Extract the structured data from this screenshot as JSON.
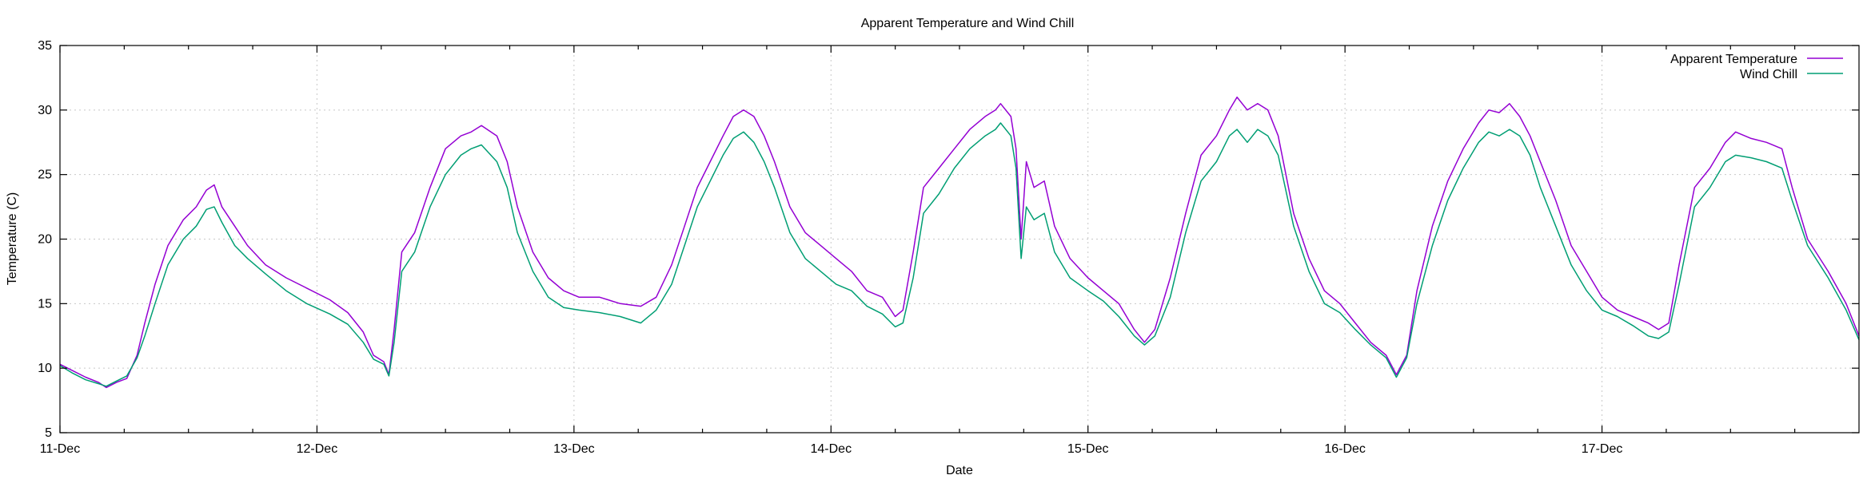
{
  "chart_data": {
    "type": "line",
    "title": "Apparent Temperature and Wind Chill",
    "xlabel": "Date",
    "ylabel": "Temperature (C)",
    "xlim": [
      0,
      7
    ],
    "ylim": [
      5,
      35
    ],
    "yticks": [
      5,
      10,
      15,
      20,
      25,
      30,
      35
    ],
    "xticks": [
      {
        "x": 0,
        "label": "11-Dec"
      },
      {
        "x": 1,
        "label": "12-Dec"
      },
      {
        "x": 2,
        "label": "13-Dec"
      },
      {
        "x": 3,
        "label": "14-Dec"
      },
      {
        "x": 4,
        "label": "15-Dec"
      },
      {
        "x": 5,
        "label": "16-Dec"
      },
      {
        "x": 6,
        "label": "17-Dec"
      }
    ],
    "grid": true,
    "legend_position": "top-right",
    "series": [
      {
        "name": "Apparent Temperature",
        "color": "#9400d3",
        "points": [
          [
            0.0,
            10.3
          ],
          [
            0.05,
            9.8
          ],
          [
            0.1,
            9.3
          ],
          [
            0.15,
            8.9
          ],
          [
            0.18,
            8.5
          ],
          [
            0.22,
            8.9
          ],
          [
            0.26,
            9.2
          ],
          [
            0.3,
            11.0
          ],
          [
            0.33,
            13.5
          ],
          [
            0.37,
            16.5
          ],
          [
            0.42,
            19.5
          ],
          [
            0.48,
            21.5
          ],
          [
            0.53,
            22.5
          ],
          [
            0.57,
            23.8
          ],
          [
            0.6,
            24.2
          ],
          [
            0.63,
            22.5
          ],
          [
            0.68,
            21.0
          ],
          [
            0.73,
            19.5
          ],
          [
            0.8,
            18.0
          ],
          [
            0.88,
            17.0
          ],
          [
            0.96,
            16.2
          ],
          [
            1.05,
            15.3
          ],
          [
            1.12,
            14.3
          ],
          [
            1.18,
            12.8
          ],
          [
            1.22,
            11.0
          ],
          [
            1.26,
            10.5
          ],
          [
            1.28,
            9.5
          ],
          [
            1.3,
            13.0
          ],
          [
            1.33,
            19.0
          ],
          [
            1.38,
            20.5
          ],
          [
            1.44,
            24.0
          ],
          [
            1.5,
            27.0
          ],
          [
            1.56,
            28.0
          ],
          [
            1.6,
            28.3
          ],
          [
            1.64,
            28.8
          ],
          [
            1.7,
            28.0
          ],
          [
            1.74,
            26.0
          ],
          [
            1.78,
            22.5
          ],
          [
            1.84,
            19.0
          ],
          [
            1.9,
            17.0
          ],
          [
            1.96,
            16.0
          ],
          [
            2.02,
            15.5
          ],
          [
            2.1,
            15.5
          ],
          [
            2.18,
            15.0
          ],
          [
            2.26,
            14.8
          ],
          [
            2.32,
            15.5
          ],
          [
            2.38,
            18.0
          ],
          [
            2.43,
            21.0
          ],
          [
            2.48,
            24.0
          ],
          [
            2.53,
            26.0
          ],
          [
            2.58,
            28.0
          ],
          [
            2.62,
            29.5
          ],
          [
            2.66,
            30.0
          ],
          [
            2.7,
            29.5
          ],
          [
            2.74,
            28.0
          ],
          [
            2.78,
            26.0
          ],
          [
            2.84,
            22.5
          ],
          [
            2.9,
            20.5
          ],
          [
            2.96,
            19.5
          ],
          [
            3.02,
            18.5
          ],
          [
            3.08,
            17.5
          ],
          [
            3.14,
            16.0
          ],
          [
            3.2,
            15.5
          ],
          [
            3.25,
            14.0
          ],
          [
            3.28,
            14.5
          ],
          [
            3.32,
            19.0
          ],
          [
            3.36,
            24.0
          ],
          [
            3.42,
            25.5
          ],
          [
            3.48,
            27.0
          ],
          [
            3.54,
            28.5
          ],
          [
            3.6,
            29.5
          ],
          [
            3.64,
            30.0
          ],
          [
            3.66,
            30.5
          ],
          [
            3.7,
            29.5
          ],
          [
            3.72,
            27.0
          ],
          [
            3.74,
            20.0
          ],
          [
            3.76,
            26.0
          ],
          [
            3.79,
            24.0
          ],
          [
            3.83,
            24.5
          ],
          [
            3.87,
            21.0
          ],
          [
            3.93,
            18.5
          ],
          [
            4.0,
            17.0
          ],
          [
            4.06,
            16.0
          ],
          [
            4.12,
            15.0
          ],
          [
            4.18,
            13.0
          ],
          [
            4.22,
            12.0
          ],
          [
            4.26,
            13.0
          ],
          [
            4.32,
            17.0
          ],
          [
            4.38,
            22.0
          ],
          [
            4.44,
            26.5
          ],
          [
            4.5,
            28.0
          ],
          [
            4.55,
            30.0
          ],
          [
            4.58,
            31.0
          ],
          [
            4.62,
            30.0
          ],
          [
            4.66,
            30.5
          ],
          [
            4.7,
            30.0
          ],
          [
            4.74,
            28.0
          ],
          [
            4.8,
            22.0
          ],
          [
            4.86,
            18.5
          ],
          [
            4.92,
            16.0
          ],
          [
            4.98,
            15.0
          ],
          [
            5.04,
            13.5
          ],
          [
            5.1,
            12.0
          ],
          [
            5.16,
            11.0
          ],
          [
            5.2,
            9.5
          ],
          [
            5.24,
            11.0
          ],
          [
            5.28,
            16.0
          ],
          [
            5.34,
            21.0
          ],
          [
            5.4,
            24.5
          ],
          [
            5.46,
            27.0
          ],
          [
            5.52,
            29.0
          ],
          [
            5.56,
            30.0
          ],
          [
            5.6,
            29.8
          ],
          [
            5.64,
            30.5
          ],
          [
            5.68,
            29.5
          ],
          [
            5.72,
            28.0
          ],
          [
            5.76,
            26.0
          ],
          [
            5.82,
            23.0
          ],
          [
            5.88,
            19.5
          ],
          [
            5.94,
            17.5
          ],
          [
            6.0,
            15.5
          ],
          [
            6.06,
            14.5
          ],
          [
            6.12,
            14.0
          ],
          [
            6.18,
            13.5
          ],
          [
            6.22,
            13.0
          ],
          [
            6.26,
            13.5
          ],
          [
            6.3,
            18.0
          ],
          [
            6.36,
            24.0
          ],
          [
            6.42,
            25.5
          ],
          [
            6.48,
            27.5
          ],
          [
            6.52,
            28.3
          ],
          [
            6.58,
            27.8
          ],
          [
            6.64,
            27.5
          ],
          [
            6.7,
            27.0
          ],
          [
            6.74,
            24.0
          ],
          [
            6.8,
            20.0
          ],
          [
            6.88,
            17.5
          ],
          [
            6.95,
            15.0
          ],
          [
            7.0,
            12.5
          ]
        ]
      },
      {
        "name": "Wind Chill",
        "color": "#009e73",
        "points": [
          [
            0.0,
            10.2
          ],
          [
            0.05,
            9.6
          ],
          [
            0.1,
            9.1
          ],
          [
            0.15,
            8.8
          ],
          [
            0.18,
            8.6
          ],
          [
            0.22,
            9.0
          ],
          [
            0.26,
            9.4
          ],
          [
            0.3,
            10.8
          ],
          [
            0.33,
            12.5
          ],
          [
            0.37,
            15.0
          ],
          [
            0.42,
            18.0
          ],
          [
            0.48,
            20.0
          ],
          [
            0.53,
            21.0
          ],
          [
            0.57,
            22.3
          ],
          [
            0.6,
            22.5
          ],
          [
            0.63,
            21.3
          ],
          [
            0.68,
            19.5
          ],
          [
            0.73,
            18.5
          ],
          [
            0.8,
            17.3
          ],
          [
            0.88,
            16.0
          ],
          [
            0.96,
            15.0
          ],
          [
            1.05,
            14.2
          ],
          [
            1.12,
            13.4
          ],
          [
            1.18,
            12.0
          ],
          [
            1.22,
            10.7
          ],
          [
            1.26,
            10.3
          ],
          [
            1.28,
            9.4
          ],
          [
            1.3,
            12.0
          ],
          [
            1.33,
            17.5
          ],
          [
            1.38,
            19.0
          ],
          [
            1.44,
            22.5
          ],
          [
            1.5,
            25.0
          ],
          [
            1.56,
            26.5
          ],
          [
            1.6,
            27.0
          ],
          [
            1.64,
            27.3
          ],
          [
            1.7,
            26.0
          ],
          [
            1.74,
            24.0
          ],
          [
            1.78,
            20.5
          ],
          [
            1.84,
            17.5
          ],
          [
            1.9,
            15.5
          ],
          [
            1.96,
            14.7
          ],
          [
            2.02,
            14.5
          ],
          [
            2.1,
            14.3
          ],
          [
            2.18,
            14.0
          ],
          [
            2.26,
            13.5
          ],
          [
            2.32,
            14.5
          ],
          [
            2.38,
            16.5
          ],
          [
            2.43,
            19.5
          ],
          [
            2.48,
            22.5
          ],
          [
            2.53,
            24.5
          ],
          [
            2.58,
            26.5
          ],
          [
            2.62,
            27.8
          ],
          [
            2.66,
            28.3
          ],
          [
            2.7,
            27.5
          ],
          [
            2.74,
            26.0
          ],
          [
            2.78,
            24.0
          ],
          [
            2.84,
            20.5
          ],
          [
            2.9,
            18.5
          ],
          [
            2.96,
            17.5
          ],
          [
            3.02,
            16.5
          ],
          [
            3.08,
            16.0
          ],
          [
            3.14,
            14.8
          ],
          [
            3.2,
            14.2
          ],
          [
            3.25,
            13.2
          ],
          [
            3.28,
            13.5
          ],
          [
            3.32,
            17.0
          ],
          [
            3.36,
            22.0
          ],
          [
            3.42,
            23.5
          ],
          [
            3.48,
            25.5
          ],
          [
            3.54,
            27.0
          ],
          [
            3.6,
            28.0
          ],
          [
            3.64,
            28.5
          ],
          [
            3.66,
            29.0
          ],
          [
            3.7,
            28.0
          ],
          [
            3.72,
            25.5
          ],
          [
            3.74,
            18.5
          ],
          [
            3.76,
            22.5
          ],
          [
            3.79,
            21.5
          ],
          [
            3.83,
            22.0
          ],
          [
            3.87,
            19.0
          ],
          [
            3.93,
            17.0
          ],
          [
            4.0,
            16.0
          ],
          [
            4.06,
            15.2
          ],
          [
            4.12,
            14.0
          ],
          [
            4.18,
            12.5
          ],
          [
            4.22,
            11.8
          ],
          [
            4.26,
            12.5
          ],
          [
            4.32,
            15.5
          ],
          [
            4.38,
            20.5
          ],
          [
            4.44,
            24.5
          ],
          [
            4.5,
            26.0
          ],
          [
            4.55,
            28.0
          ],
          [
            4.58,
            28.5
          ],
          [
            4.62,
            27.5
          ],
          [
            4.66,
            28.5
          ],
          [
            4.7,
            28.0
          ],
          [
            4.74,
            26.5
          ],
          [
            4.8,
            21.0
          ],
          [
            4.86,
            17.5
          ],
          [
            4.92,
            15.0
          ],
          [
            4.98,
            14.3
          ],
          [
            5.04,
            13.0
          ],
          [
            5.1,
            11.8
          ],
          [
            5.16,
            10.8
          ],
          [
            5.2,
            9.3
          ],
          [
            5.24,
            10.8
          ],
          [
            5.28,
            15.0
          ],
          [
            5.34,
            19.5
          ],
          [
            5.4,
            23.0
          ],
          [
            5.46,
            25.5
          ],
          [
            5.52,
            27.5
          ],
          [
            5.56,
            28.3
          ],
          [
            5.6,
            28.0
          ],
          [
            5.64,
            28.5
          ],
          [
            5.68,
            28.0
          ],
          [
            5.72,
            26.5
          ],
          [
            5.76,
            24.0
          ],
          [
            5.82,
            21.0
          ],
          [
            5.88,
            18.0
          ],
          [
            5.94,
            16.0
          ],
          [
            6.0,
            14.5
          ],
          [
            6.06,
            14.0
          ],
          [
            6.12,
            13.3
          ],
          [
            6.18,
            12.5
          ],
          [
            6.22,
            12.3
          ],
          [
            6.26,
            12.8
          ],
          [
            6.3,
            16.5
          ],
          [
            6.36,
            22.5
          ],
          [
            6.42,
            24.0
          ],
          [
            6.48,
            26.0
          ],
          [
            6.52,
            26.5
          ],
          [
            6.58,
            26.3
          ],
          [
            6.64,
            26.0
          ],
          [
            6.7,
            25.5
          ],
          [
            6.74,
            23.0
          ],
          [
            6.8,
            19.5
          ],
          [
            6.88,
            17.0
          ],
          [
            6.95,
            14.5
          ],
          [
            7.0,
            12.2
          ]
        ]
      }
    ]
  }
}
